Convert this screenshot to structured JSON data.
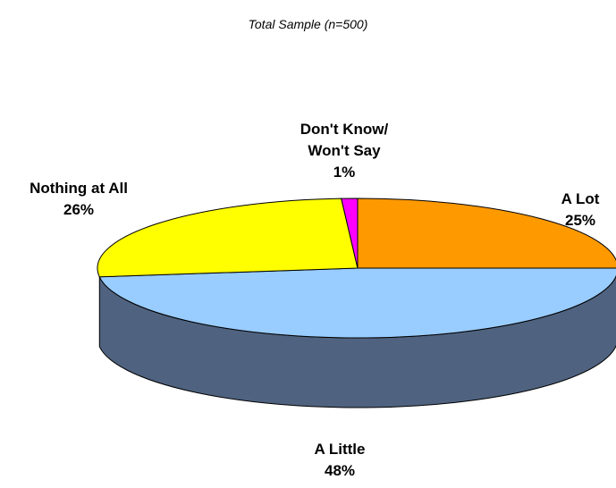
{
  "chart_data": {
    "type": "pie",
    "title": "Total Sample (n=500)",
    "three_d": true,
    "slices": [
      {
        "label_lines": [
          "A Lot"
        ],
        "value": 25,
        "value_label": "25%",
        "color": "#FF9900"
      },
      {
        "label_lines": [
          "A Little"
        ],
        "value": 48,
        "value_label": "48%",
        "color": "#99CCFF",
        "side_color": "#4F6380"
      },
      {
        "label_lines": [
          "Nothing at All"
        ],
        "value": 26,
        "value_label": "26%",
        "color": "#FFFF00"
      },
      {
        "label_lines": [
          "Don't Know/",
          "Won't Say"
        ],
        "value": 1,
        "value_label": "1%",
        "color": "#FF00FF"
      }
    ],
    "legend": "none"
  }
}
